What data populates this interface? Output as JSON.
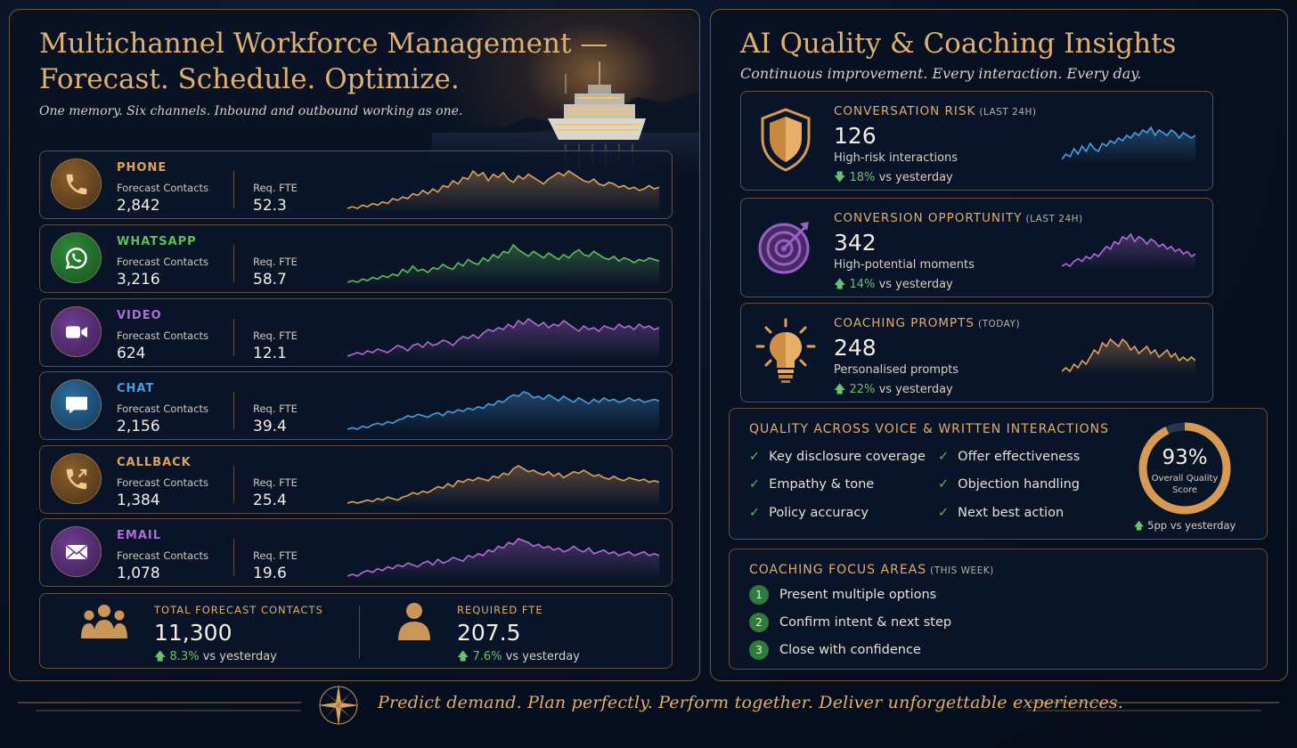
{
  "left": {
    "title_line1": "Multichannel Workforce Management —",
    "title_line2": "Forecast. Schedule. Optimize.",
    "subtitle": "One memory. Six channels. Inbound and outbound working as one.",
    "forecast_label": "Forecast Contacts",
    "fte_label": "Req. FTE",
    "channels": [
      {
        "name": "PHONE",
        "forecast": "2,842",
        "fte": "52.3",
        "color": "#e0a25a",
        "icon": "phone-icon",
        "trend": [
          5,
          6,
          5,
          7,
          6,
          8,
          7,
          9,
          8,
          11,
          10,
          12,
          11,
          14,
          13,
          16,
          14,
          17,
          15,
          19,
          18,
          22,
          20,
          24,
          23,
          28,
          25,
          27,
          22,
          26,
          24,
          27,
          23,
          21,
          25,
          23,
          26,
          24,
          22,
          20,
          23,
          25,
          27,
          25,
          28,
          26,
          24,
          22,
          21,
          23,
          20,
          19,
          21,
          20,
          18,
          19,
          17,
          18,
          16,
          17,
          19,
          17,
          18
        ]
      },
      {
        "name": "WHATSAPP",
        "forecast": "3,216",
        "fte": "58.7",
        "color": "#5fbf5a",
        "icon": "whatsapp-icon",
        "trend": [
          4,
          5,
          4,
          6,
          5,
          7,
          6,
          8,
          7,
          9,
          8,
          12,
          10,
          14,
          11,
          12,
          10,
          13,
          12,
          15,
          13,
          12,
          16,
          14,
          18,
          16,
          15,
          19,
          17,
          21,
          19,
          23,
          22,
          27,
          24,
          22,
          20,
          23,
          21,
          19,
          22,
          20,
          18,
          21,
          19,
          22,
          24,
          21,
          20,
          23,
          21,
          19,
          18,
          20,
          17,
          19,
          18,
          16,
          18,
          17,
          19,
          18,
          17
        ]
      },
      {
        "name": "VIDEO",
        "forecast": "624",
        "fte": "12.1",
        "color": "#b56ad8",
        "icon": "video-camera-icon",
        "trend": [
          6,
          7,
          8,
          7,
          9,
          8,
          10,
          9,
          8,
          10,
          12,
          11,
          9,
          12,
          13,
          11,
          14,
          12,
          13,
          15,
          14,
          12,
          15,
          17,
          16,
          18,
          16,
          19,
          21,
          20,
          22,
          21,
          24,
          22,
          26,
          24,
          27,
          25,
          23,
          25,
          22,
          24,
          23,
          26,
          24,
          22,
          20,
          23,
          21,
          22,
          20,
          23,
          22,
          21,
          24,
          22,
          23,
          21,
          24,
          22,
          23,
          21,
          22
        ]
      },
      {
        "name": "CHAT",
        "forecast": "2,156",
        "fte": "39.4",
        "color": "#4a9ee0",
        "icon": "chat-bubble-icon",
        "trend": [
          5,
          6,
          5,
          7,
          6,
          8,
          9,
          8,
          10,
          9,
          11,
          12,
          14,
          13,
          15,
          14,
          13,
          15,
          16,
          14,
          17,
          16,
          18,
          17,
          19,
          18,
          20,
          19,
          22,
          21,
          24,
          23,
          26,
          28,
          27,
          30,
          29,
          26,
          27,
          25,
          28,
          26,
          24,
          27,
          25,
          23,
          26,
          24,
          22,
          25,
          23,
          26,
          24,
          25,
          23,
          24,
          26,
          24,
          25,
          23,
          24,
          25,
          24
        ]
      },
      {
        "name": "CALLBACK",
        "forecast": "1,384",
        "fte": "25.4",
        "color": "#e0a25a",
        "icon": "callback-icon",
        "trend": [
          5,
          6,
          5,
          6,
          7,
          6,
          8,
          7,
          9,
          8,
          7,
          9,
          10,
          12,
          11,
          13,
          12,
          14,
          16,
          15,
          18,
          16,
          20,
          19,
          21,
          20,
          22,
          21,
          20,
          23,
          22,
          25,
          24,
          28,
          30,
          28,
          26,
          27,
          25,
          24,
          26,
          23,
          25,
          22,
          24,
          26,
          25,
          27,
          25,
          23,
          24,
          22,
          21,
          23,
          21,
          20,
          22,
          21,
          20,
          21,
          19,
          20,
          19
        ]
      },
      {
        "name": "EMAIL",
        "forecast": "1,078",
        "fte": "19.6",
        "color": "#b56ad8",
        "icon": "envelope-icon",
        "trend": [
          6,
          7,
          6,
          8,
          9,
          8,
          10,
          9,
          11,
          10,
          12,
          11,
          13,
          12,
          11,
          13,
          14,
          12,
          15,
          13,
          14,
          16,
          15,
          14,
          17,
          16,
          18,
          17,
          20,
          19,
          22,
          21,
          24,
          23,
          26,
          25,
          24,
          22,
          23,
          21,
          22,
          20,
          21,
          19,
          20,
          22,
          20,
          19,
          21,
          18,
          19,
          20,
          18,
          19,
          17,
          18,
          19,
          17,
          18,
          19,
          17,
          18,
          17
        ]
      }
    ],
    "totals": {
      "contacts_label": "TOTAL FORECAST CONTACTS",
      "contacts_value": "11,300",
      "contacts_delta": "8.3%",
      "fte_label": "REQUIRED FTE",
      "fte_value": "207.5",
      "fte_delta": "7.6%",
      "delta_suffix": "vs yesterday"
    }
  },
  "right": {
    "title": "AI Quality & Coaching Insights",
    "subtitle": "Continuous improvement. Every interaction. Every day.",
    "metrics": [
      {
        "title": "CONVERSATION RISK",
        "period": "(LAST 24H)",
        "value": "126",
        "desc": "High-risk interactions",
        "delta": "18%",
        "delta_suffix": "vs yesterday",
        "delta_dir": "down",
        "color": "#4a9ee0",
        "icon": "shield-icon",
        "trend": [
          6,
          8,
          7,
          10,
          8,
          11,
          9,
          12,
          10,
          9,
          12,
          11,
          13,
          12,
          14,
          13,
          15,
          14,
          16,
          15,
          17,
          16,
          18,
          15,
          17,
          16,
          15,
          17,
          16,
          14,
          16,
          15,
          14,
          15
        ]
      },
      {
        "title": "CONVERSION OPPORTUNITY",
        "period": "(LAST 24H)",
        "value": "342",
        "desc": "High-potential moments",
        "delta": "14%",
        "delta_suffix": "vs yesterday",
        "delta_dir": "up",
        "color": "#b56ad8",
        "icon": "target-icon",
        "trend": [
          6,
          7,
          6,
          8,
          9,
          8,
          10,
          9,
          11,
          10,
          12,
          14,
          13,
          16,
          15,
          18,
          17,
          19,
          16,
          18,
          17,
          15,
          17,
          16,
          14,
          15,
          13,
          14,
          12,
          13,
          11,
          12,
          10,
          11
        ]
      },
      {
        "title": "COACHING PROMPTS",
        "period": "(TODAY)",
        "value": "248",
        "desc": "Personalised prompts",
        "delta": "22%",
        "delta_suffix": "vs yesterday",
        "delta_dir": "up",
        "color": "#e0a25a",
        "icon": "lightbulb-icon",
        "trend": [
          5,
          6,
          5,
          7,
          6,
          8,
          7,
          9,
          11,
          10,
          13,
          12,
          14,
          13,
          12,
          14,
          13,
          11,
          12,
          10,
          11,
          12,
          10,
          11,
          9,
          10,
          11,
          9,
          10,
          8,
          9,
          8,
          9,
          8
        ]
      }
    ],
    "quality": {
      "title": "QUALITY ACROSS VOICE & WRITTEN INTERACTIONS",
      "items_left": [
        "Key disclosure coverage",
        "Empathy & tone",
        "Policy accuracy"
      ],
      "items_right": [
        "Offer effectiveness",
        "Objection handling",
        "Next best action"
      ],
      "score": 0.93,
      "score_text": "93%",
      "score_label_1": "Overall Quality",
      "score_label_2": "Score",
      "delta": "5pp vs yesterday"
    },
    "coaching": {
      "title": "COACHING FOCUS AREAS",
      "period": "(THIS WEEK)",
      "items": [
        {
          "num": "1",
          "text": "Present multiple options"
        },
        {
          "num": "2",
          "text": "Confirm intent & next step"
        },
        {
          "num": "3",
          "text": "Close with confidence"
        }
      ]
    }
  },
  "footer": {
    "tagline": "Predict demand. Plan perfectly. Perform together. Deliver unforgettable experiences."
  },
  "colors": {
    "accent": "#e1b070",
    "positive": "#6cc070",
    "border": "#c99756"
  }
}
